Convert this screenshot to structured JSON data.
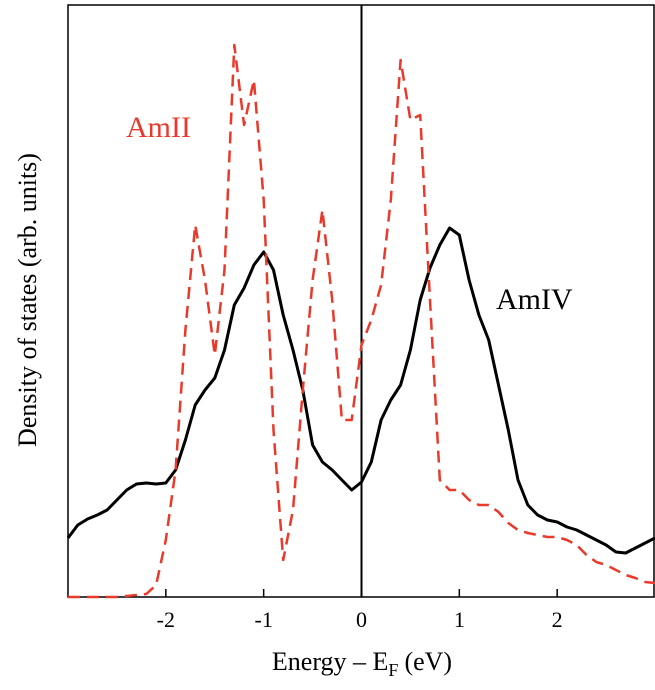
{
  "chart_data": {
    "type": "line",
    "xlabel": {
      "main": "Energy – E",
      "sub": "F",
      "unit": "(eV)"
    },
    "ylabel": "Density of states (arb. units)",
    "x": [
      -3.0,
      -2.9,
      -2.8,
      -2.7,
      -2.6,
      -2.5,
      -2.4,
      -2.3,
      -2.2,
      -2.1,
      -2.0,
      -1.9,
      -1.8,
      -1.7,
      -1.6,
      -1.5,
      -1.4,
      -1.3,
      -1.2,
      -1.1,
      -1.0,
      -0.9,
      -0.8,
      -0.7,
      -0.6,
      -0.5,
      -0.4,
      -0.3,
      -0.2,
      -0.1,
      0.0,
      0.1,
      0.2,
      0.3,
      0.4,
      0.5,
      0.6,
      0.7,
      0.8,
      0.9,
      1.0,
      1.1,
      1.2,
      1.3,
      1.4,
      1.5,
      1.6,
      1.7,
      1.8,
      1.9,
      2.0,
      2.1,
      2.2,
      2.3,
      2.4,
      2.5,
      2.6,
      2.7,
      2.8,
      2.9,
      3.0
    ],
    "series": [
      {
        "name": "AmIV",
        "color": "#000000",
        "dashed": false,
        "values": [
          59,
          72,
          78,
          82,
          87,
          97,
          107,
          113,
          114,
          113,
          114,
          127,
          157,
          192,
          207,
          219,
          247,
          292,
          309,
          332,
          345,
          327,
          282,
          247,
          207,
          152,
          135,
          127,
          117,
          107,
          115,
          135,
          177,
          197,
          212,
          247,
          297,
          329,
          352,
          369,
          362,
          317,
          282,
          257,
          212,
          167,
          117,
          92,
          82,
          77,
          75,
          70,
          67,
          62,
          57,
          52,
          45,
          44,
          49,
          54,
          59
        ]
      },
      {
        "name": "AmII",
        "color": "#e8392b",
        "dashed": true,
        "values": [
          0,
          0,
          0,
          0,
          0,
          0,
          1,
          2,
          3,
          12,
          57,
          127,
          267,
          372,
          317,
          242,
          327,
          552,
          472,
          517,
          397,
          167,
          37,
          87,
          207,
          317,
          387,
          297,
          177,
          177,
          252,
          277,
          312,
          397,
          537,
          477,
          482,
          297,
          117,
          107,
          107,
          97,
          92,
          92,
          85,
          74,
          67,
          64,
          62,
          60,
          60,
          57,
          52,
          42,
          35,
          32,
          27,
          22,
          19,
          15,
          14
        ]
      }
    ],
    "xlim": [
      -3,
      3
    ],
    "xticks": [
      -2,
      -1,
      0,
      1,
      2
    ],
    "ylim": [
      0,
      592
    ],
    "vline": 0
  }
}
